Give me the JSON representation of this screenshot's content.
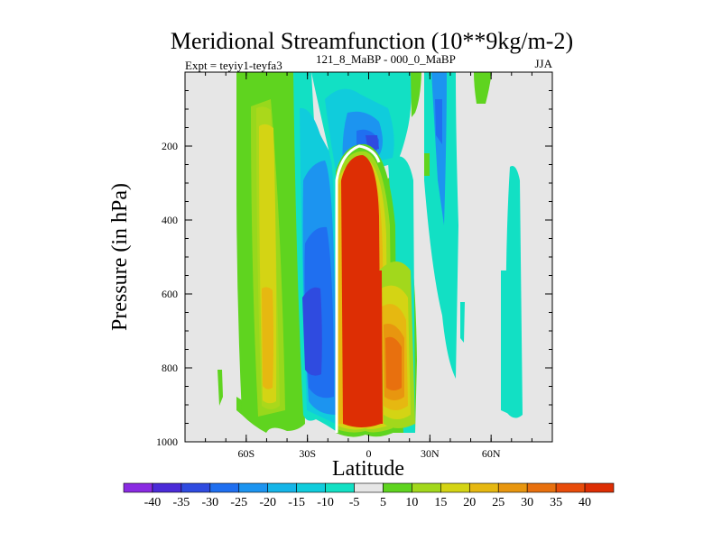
{
  "chart_data": {
    "type": "heatmap",
    "title": "Meridional Streamfunction (10**9kg/m-2)",
    "subtitle_left": "Expt = teyiy1-teyfa3",
    "subtitle_sup": "121_8_MaBP - 000_0_MaBP",
    "season": "JJA",
    "xlabel": "Latitude",
    "ylabel": "Pressure (in hPa)",
    "xlim": [
      -90,
      90
    ],
    "ylim": [
      0,
      1000
    ],
    "y_inverted": true,
    "x_ticks": [
      {
        "value": -60,
        "label": "60S"
      },
      {
        "value": -30,
        "label": "30S"
      },
      {
        "value": 0,
        "label": "0"
      },
      {
        "value": 30,
        "label": "30N"
      },
      {
        "value": 60,
        "label": "60N"
      }
    ],
    "y_ticks": [
      {
        "value": 200,
        "label": "200"
      },
      {
        "value": 400,
        "label": "400"
      },
      {
        "value": 600,
        "label": "600"
      },
      {
        "value": 800,
        "label": "800"
      },
      {
        "value": 1000,
        "label": "1000"
      }
    ],
    "colorbar": {
      "labels": [
        "-40",
        "-35",
        "-30",
        "-25",
        "-20",
        "-15",
        "-10",
        "-5",
        "5",
        "10",
        "15",
        "20",
        "25",
        "30",
        "35",
        "40"
      ],
      "colors": [
        "#8A2BE2",
        "#4B2BD8",
        "#2F4BE0",
        "#1F6FF0",
        "#1C94F0",
        "#15B5E8",
        "#10CCDC",
        "#12E0C4",
        "#E6E6E6",
        "#5FD41F",
        "#A2D81C",
        "#D4D414",
        "#E6B811",
        "#E8960F",
        "#E8700E",
        "#E84C0A",
        "#DD2E04"
      ]
    },
    "features": [
      {
        "name": "tropical-positive-cell",
        "value": 40,
        "lat_range": [
          -13,
          5
        ],
        "p_range": [
          210,
          990
        ]
      },
      {
        "name": "sh-negative-cell",
        "value": -30,
        "lat_range": [
          -34,
          -27
        ],
        "p_range": [
          330,
          840
        ]
      },
      {
        "name": "sh-positive-band",
        "value": 20,
        "lat_range": [
          -55,
          -41
        ],
        "p_range": [
          120,
          950
        ]
      },
      {
        "name": "nh-positive-cell",
        "value": 30,
        "lat_range": [
          6,
          15
        ],
        "p_range": [
          590,
          960
        ]
      },
      {
        "name": "nh-teal-band",
        "value": -10,
        "lat_range": [
          64,
          70
        ],
        "p_range": [
          260,
          900
        ]
      }
    ]
  }
}
